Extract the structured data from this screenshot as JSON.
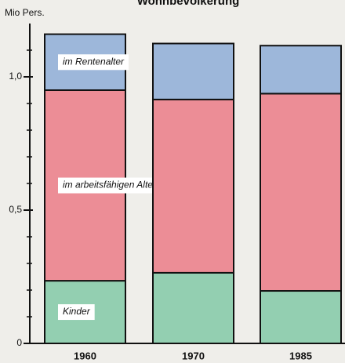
{
  "chart_data": {
    "type": "stacked_bar",
    "title": "Wohnbevölkerung",
    "y_label": "Mio Pers.",
    "categories": [
      "1960",
      "1970",
      "1985"
    ],
    "series": [
      {
        "name": "Kinder",
        "color": "#93cfb1",
        "values": [
          0.235,
          0.265,
          0.197
        ]
      },
      {
        "name": "im arbeitsfähigen Alter",
        "color": "#ec8d96",
        "values": [
          0.715,
          0.65,
          0.74
        ]
      },
      {
        "name": "im Rentenalter",
        "color": "#9db7da",
        "values": [
          0.21,
          0.21,
          0.18
        ]
      }
    ],
    "ylim": [
      0,
      1.2
    ],
    "yticks": [
      0,
      {
        "value": 0.5,
        "label": "0,5"
      },
      {
        "value": 1,
        "label": "1,0"
      }
    ],
    "minor_yticks": [
      0.1,
      0.2,
      0.3,
      0.4,
      0.6,
      0.7,
      0.8,
      0.9,
      1.1
    ]
  }
}
